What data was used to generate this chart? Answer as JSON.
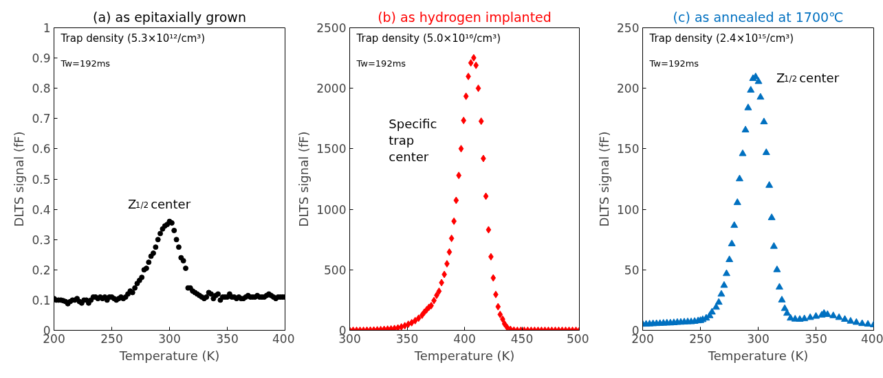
{
  "chart_data": [
    {
      "type": "scatter",
      "title": "(a) as epitaxially grown",
      "xlabel": "Temperature (K)",
      "ylabel": "DLTS signal (fF)",
      "marker": "circle",
      "grid": false,
      "xlim": [
        200,
        400
      ],
      "xticks": [
        200,
        250,
        300,
        350,
        400
      ],
      "ylim": [
        0,
        1
      ],
      "yticks": [
        0,
        0.1,
        0.2,
        0.3,
        0.4,
        0.5,
        0.6,
        0.7,
        0.8,
        0.9,
        1
      ],
      "annotations": [
        "Trap density (5.3×10¹²/cm³)",
        "Tw=192ms",
        "Z$_{1/2}$ center"
      ],
      "series": [
        {
          "color": "#000000",
          "x": [
            200,
            202,
            204,
            206,
            208,
            210,
            212,
            214,
            216,
            218,
            220,
            222,
            224,
            226,
            228,
            230,
            232,
            234,
            236,
            238,
            240,
            242,
            244,
            246,
            248,
            250,
            252,
            254,
            256,
            258,
            260,
            262,
            264,
            266,
            268,
            270,
            272,
            274,
            276,
            278,
            280,
            282,
            284,
            286,
            288,
            290,
            292,
            294,
            296,
            298,
            300,
            302,
            304,
            306,
            308,
            310,
            312,
            314,
            316,
            318,
            320,
            322,
            324,
            326,
            328,
            330,
            332,
            334,
            336,
            338,
            340,
            342,
            344,
            346,
            348,
            350,
            352,
            354,
            356,
            358,
            360,
            362,
            364,
            366,
            368,
            370,
            372,
            374,
            376,
            378,
            380,
            382,
            384,
            386,
            388,
            390,
            392,
            394,
            396,
            398,
            400
          ],
          "values": [
            0.105,
            0.1,
            0.1,
            0.1,
            0.098,
            0.095,
            0.088,
            0.095,
            0.1,
            0.1,
            0.105,
            0.095,
            0.09,
            0.1,
            0.1,
            0.09,
            0.1,
            0.11,
            0.11,
            0.105,
            0.11,
            0.105,
            0.11,
            0.1,
            0.11,
            0.11,
            0.105,
            0.1,
            0.105,
            0.11,
            0.105,
            0.11,
            0.12,
            0.13,
            0.125,
            0.14,
            0.155,
            0.165,
            0.175,
            0.2,
            0.205,
            0.225,
            0.245,
            0.255,
            0.275,
            0.3,
            0.32,
            0.335,
            0.345,
            0.35,
            0.36,
            0.355,
            0.33,
            0.3,
            0.275,
            0.24,
            0.23,
            0.205,
            0.14,
            0.14,
            0.13,
            0.125,
            0.12,
            0.115,
            0.11,
            0.105,
            0.11,
            0.125,
            0.12,
            0.105,
            0.115,
            0.12,
            0.1,
            0.11,
            0.11,
            0.11,
            0.12,
            0.11,
            0.11,
            0.105,
            0.11,
            0.105,
            0.105,
            0.11,
            0.115,
            0.11,
            0.11,
            0.11,
            0.115,
            0.11,
            0.11,
            0.11,
            0.115,
            0.12,
            0.115,
            0.11,
            0.105,
            0.11,
            0.11,
            0.11,
            0.11
          ]
        }
      ]
    },
    {
      "type": "scatter",
      "title": "(b) as hydrogen implanted",
      "xlabel": "Temperature (K)",
      "ylabel": "DLTS signal (fF)",
      "marker": "diamond",
      "grid": false,
      "xlim": [
        300,
        500
      ],
      "xticks": [
        300,
        350,
        400,
        450,
        500
      ],
      "ylim": [
        0,
        2500
      ],
      "yticks": [
        0,
        500,
        1000,
        1500,
        2000,
        2500
      ],
      "annotations": [
        "Trap density (5.0×10¹⁶/cm³)",
        "Tw=192ms",
        "Specific\ntrap\ncenter"
      ],
      "series": [
        {
          "color": "#ff0000",
          "x": [
            300,
            303,
            306,
            309,
            312,
            315,
            318,
            321,
            324,
            327,
            330,
            333,
            336,
            339,
            342,
            345,
            348,
            351,
            354,
            357,
            360,
            363,
            365,
            367,
            369,
            371,
            373.4,
            375.7,
            377.8,
            380,
            382.4,
            384.7,
            386.8,
            388.7,
            390.8,
            392.7,
            395,
            397,
            399.2,
            401.3,
            403.3,
            405.5,
            408,
            410,
            412,
            414.5,
            416.4,
            418.6,
            420.9,
            423,
            425,
            427.2,
            429.2,
            431,
            433.2,
            434.8,
            437,
            440,
            443,
            446,
            449,
            452,
            455,
            458,
            461,
            464,
            467,
            470,
            473,
            476,
            479,
            482,
            485,
            488,
            491,
            494,
            497,
            500
          ],
          "values": [
            0,
            0,
            0,
            0,
            0,
            1,
            2,
            3,
            4,
            6,
            8,
            10,
            12,
            15,
            20,
            28,
            38,
            50,
            63,
            80,
            100,
            125,
            150,
            170,
            190,
            204,
            246,
            289,
            323,
            394,
            462,
            550,
            647,
            760,
            902,
            1074,
            1280,
            1501,
            1734,
            1934,
            2098,
            2210,
            2252,
            2190,
            2000,
            1728,
            1420,
            1108,
            831,
            608,
            433,
            296,
            195,
            131,
            92,
            54,
            25,
            8,
            2,
            0,
            0,
            0,
            0,
            0,
            0,
            0,
            0,
            0,
            0,
            0,
            0,
            0,
            0,
            0,
            0,
            0,
            0,
            0
          ]
        }
      ]
    },
    {
      "type": "scatter",
      "title": "(c) as annealed at 1700℃",
      "xlabel": "Temperature (K)",
      "ylabel": "DLTS signal (fF)",
      "marker": "triangle",
      "grid": false,
      "xlim": [
        200,
        400
      ],
      "xticks": [
        200,
        250,
        300,
        350,
        400
      ],
      "ylim": [
        0,
        250
      ],
      "yticks": [
        0,
        50,
        100,
        150,
        200,
        250
      ],
      "annotations": [
        "Trap density (2.4×10¹⁵/cm³)",
        "Tw=192ms",
        "Z$_{1/2}$ center"
      ],
      "series": [
        {
          "color": "#0070c0",
          "x": [
            200,
            203,
            206,
            209,
            212,
            215,
            218,
            221,
            224,
            227,
            230,
            233,
            236,
            239,
            242,
            245,
            248,
            250,
            252,
            255,
            258,
            260,
            263.6,
            265.9,
            268.1,
            270.5,
            272.6,
            275.1,
            277.2,
            279.3,
            282,
            283.9,
            286.6,
            289,
            291.3,
            293.6,
            295.5,
            297.8,
            300.3,
            302,
            305,
            307,
            309.6,
            311.7,
            313.6,
            316.3,
            318.4,
            320.5,
            323,
            325,
            328,
            332,
            336,
            340,
            345,
            350,
            355,
            357,
            360,
            365,
            370,
            375,
            380,
            385,
            390,
            395,
            400
          ],
          "values": [
            5,
            5,
            5.2,
            5.4,
            5.5,
            5.6,
            5.8,
            6,
            6,
            6.2,
            6.5,
            6.6,
            6.8,
            7,
            7,
            7.3,
            7.8,
            8,
            8.8,
            10,
            12,
            15,
            19,
            23.1,
            29.8,
            37.1,
            46.8,
            58.3,
            71.4,
            86.6,
            105.5,
            125.1,
            145.9,
            165.5,
            183.8,
            198.4,
            208,
            209.4,
            205.5,
            192.6,
            172.2,
            146.8,
            119.7,
            93,
            69.3,
            50,
            35.6,
            25,
            17.9,
            14,
            10,
            9.2,
            9,
            9.5,
            10.5,
            11.5,
            12.5,
            14,
            13,
            12,
            10.5,
            9,
            7.5,
            6.5,
            5.5,
            5,
            4.5
          ]
        }
      ]
    }
  ]
}
